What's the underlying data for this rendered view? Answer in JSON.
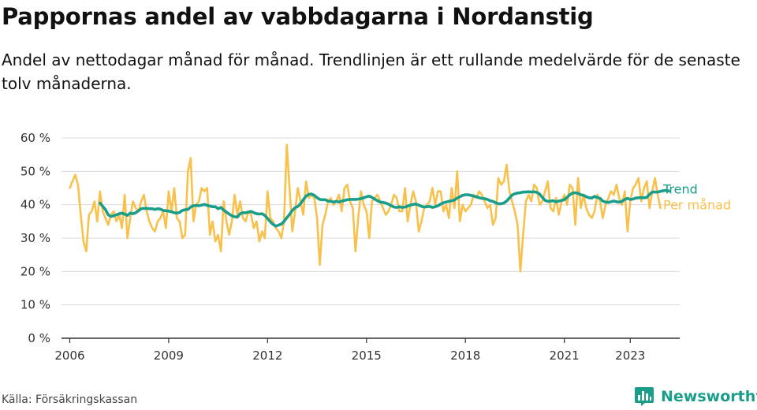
{
  "title": "Pappornas andel av vabbdagarna i Nordanstig",
  "subtitle": "Andel av nettodagar månad för månad. Trendlinjen är ett rullande medelvärde för de senaste tolv månaderna.",
  "source": "Källa: Försäkringskassan",
  "brand": {
    "name": "Newsworthy",
    "icon": "bar-chart-speech-bubble-icon"
  },
  "colors": {
    "trend": "#1a9e8a",
    "monthly": "#f8c14c",
    "grid": "#d9d9d9",
    "axis": "#333333",
    "brand": "#1a9e8a"
  },
  "chart_data": {
    "type": "line",
    "x_axis": {
      "type": "time",
      "unit": "month",
      "range": [
        "2005-10",
        "2024-07"
      ],
      "ticks": [
        "2006",
        "2009",
        "2012",
        "2015",
        "2018",
        "2021",
        "2023"
      ]
    },
    "y_axis": {
      "range": [
        0,
        60
      ],
      "ticks": [
        "0 %",
        "10 %",
        "20 %",
        "30 %",
        "40 %",
        "50 %",
        "60 %"
      ],
      "unit": "%"
    },
    "grid": "horizontal",
    "series": [
      {
        "name": "Per månad",
        "color": "#f8c14c",
        "start": "2006-01",
        "values": [
          45,
          47,
          49,
          46,
          37,
          29,
          26,
          37,
          38,
          41,
          35,
          44,
          38,
          36,
          34,
          37,
          38,
          35,
          37,
          33,
          43,
          30,
          36,
          41,
          39,
          38,
          41,
          43,
          38,
          35,
          33,
          32,
          35,
          36,
          38,
          33,
          44,
          38,
          45,
          36,
          35,
          30,
          31,
          50,
          54,
          35,
          40,
          41,
          45,
          44,
          45,
          31,
          35,
          29,
          31,
          26,
          41,
          35,
          31,
          35,
          43,
          37,
          41,
          36,
          35,
          38,
          37,
          33,
          35,
          29,
          32,
          30,
          44,
          36,
          35,
          33,
          32,
          30,
          35,
          58,
          45,
          32,
          38,
          45,
          41,
          37,
          47,
          42,
          43,
          42,
          36,
          22,
          34,
          37,
          41,
          42,
          40,
          41,
          43,
          38,
          45,
          46,
          41,
          39,
          26,
          36,
          44,
          40,
          38,
          30,
          41,
          42,
          43,
          41,
          39,
          37,
          38,
          40,
          43,
          42,
          38,
          38,
          45,
          35,
          40,
          44,
          41,
          32,
          35,
          39,
          40,
          41,
          45,
          40,
          44,
          44,
          38,
          40,
          36,
          45,
          39,
          50,
          35,
          40,
          38,
          39,
          40,
          43,
          42,
          44,
          43,
          41,
          39,
          40,
          34,
          36,
          48,
          46,
          47,
          52,
          44,
          41,
          38,
          34,
          20,
          31,
          41,
          43,
          41,
          46,
          45,
          40,
          41,
          44,
          47,
          39,
          38,
          42,
          37,
          41,
          43,
          40,
          46,
          45,
          34,
          48,
          39,
          43,
          39,
          37,
          36,
          38,
          43,
          41,
          36,
          40,
          42,
          44,
          43,
          46,
          42,
          40,
          44,
          32,
          41,
          45,
          46,
          48,
          41,
          45,
          47,
          39,
          44,
          48,
          43,
          39
        ]
      },
      {
        "name": "Trend",
        "color": "#1a9e8a",
        "start": "2006-12",
        "values": [
          40.5,
          39.5,
          38.5,
          37,
          36.5,
          36.7,
          37,
          37.3,
          37.5,
          37.2,
          36.8,
          37.5,
          37.3,
          37.6,
          38.2,
          38.8,
          38.9,
          38.9,
          38.8,
          38.8,
          38.6,
          38.8,
          38.7,
          38.3,
          38.2,
          38.1,
          37.9,
          37.6,
          37.5,
          37.7,
          38.3,
          38.5,
          38.6,
          39.3,
          39.7,
          39.8,
          39.7,
          39.9,
          40.1,
          39.8,
          39.6,
          39.4,
          39.4,
          38.8,
          39.2,
          38.4,
          37.8,
          37.2,
          36.7,
          36.4,
          36.3,
          37.3,
          37.6,
          37.6,
          37.8,
          38,
          37.6,
          37.3,
          37.2,
          37.3,
          36.8,
          35.9,
          34.9,
          34.1,
          33.6,
          33.9,
          34.2,
          35,
          36.1,
          37.1,
          38.3,
          39.1,
          39.5,
          40.3,
          41.5,
          42.6,
          43.1,
          43.2,
          42.8,
          42.1,
          41.6,
          41.5,
          41.5,
          41.1,
          41,
          40.8,
          41,
          40.8,
          41.1,
          41.3,
          41.5,
          41.6,
          41.6,
          41.6,
          41.7,
          41.8,
          42.1,
          42.4,
          42.6,
          42.2,
          41.7,
          41.2,
          40.8,
          40.7,
          40.5,
          40.2,
          39.7,
          39.3,
          39.2,
          39.4,
          39.2,
          39.3,
          39.6,
          39.9,
          40.1,
          40.2,
          39.9,
          39.5,
          39.3,
          39.4,
          39.5,
          39.2,
          39.4,
          39.7,
          40.2,
          40.6,
          40.8,
          41,
          41.2,
          41.4,
          42,
          42.4,
          42.8,
          43,
          43,
          42.8,
          42.6,
          42.4,
          42.1,
          41.9,
          41.8,
          41.6,
          41.2,
          41,
          40.6,
          40.3,
          40.3,
          40.5,
          41.1,
          42,
          42.9,
          43.3,
          43.5,
          43.6,
          43.8,
          43.8,
          43.9,
          43.8,
          43.9,
          43.7,
          43.2,
          42.2,
          41.3,
          41,
          41.1,
          41.2,
          40.9,
          41.1,
          41.3,
          41.5,
          42.2,
          43,
          43.5,
          43.6,
          43.4,
          43,
          42.8,
          42.4,
          42.1,
          42,
          42.5,
          42.2,
          41.9,
          41.1,
          40.8,
          40.7,
          40.9,
          41.1,
          40.9,
          40.8,
          41,
          41.6,
          41.9,
          41.6,
          41.7,
          42,
          42.1,
          42.1,
          42.1,
          42.2,
          43.1,
          43.8,
          43.8,
          43.8,
          44,
          44.2,
          44.3,
          44.1
        ]
      }
    ]
  }
}
